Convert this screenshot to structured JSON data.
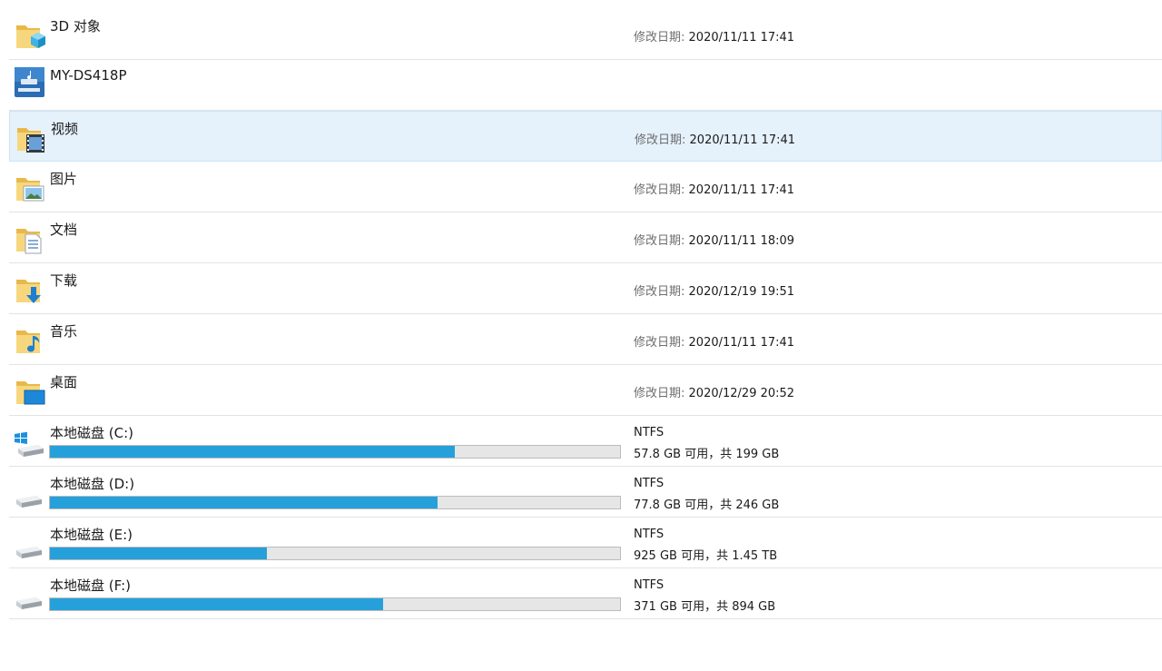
{
  "items": [
    {
      "name": "3D 对象",
      "date_label": "修改日期:",
      "date": "2020/11/11 17:41"
    },
    {
      "name": "MY-DS418P"
    },
    {
      "name": "视频",
      "date_label": "修改日期:",
      "date": "2020/11/11 17:41"
    },
    {
      "name": "图片",
      "date_label": "修改日期:",
      "date": "2020/11/11 17:41"
    },
    {
      "name": "文档",
      "date_label": "修改日期:",
      "date": "2020/11/11 18:09"
    },
    {
      "name": "下载",
      "date_label": "修改日期:",
      "date": "2020/12/19 19:51"
    },
    {
      "name": "音乐",
      "date_label": "修改日期:",
      "date": "2020/11/11 17:41"
    },
    {
      "name": "桌面",
      "date_label": "修改日期:",
      "date": "2020/12/29 20:52"
    }
  ],
  "drives": [
    {
      "name": "本地磁盘 (C:)",
      "fs": "NTFS",
      "space": "57.8 GB 可用，共 199 GB",
      "used_fraction": 0.71
    },
    {
      "name": "本地磁盘 (D:)",
      "fs": "NTFS",
      "space": "77.8 GB 可用，共 246 GB",
      "used_fraction": 0.68
    },
    {
      "name": "本地磁盘 (E:)",
      "fs": "NTFS",
      "space": "925 GB 可用，共 1.45 TB",
      "used_fraction": 0.38
    },
    {
      "name": "本地磁盘 (F:)",
      "fs": "NTFS",
      "space": "371 GB 可用，共 894 GB",
      "used_fraction": 0.585
    }
  ],
  "colors": {
    "bar_fill": "#26a0da",
    "selected_bg": "#e5f1fb"
  }
}
